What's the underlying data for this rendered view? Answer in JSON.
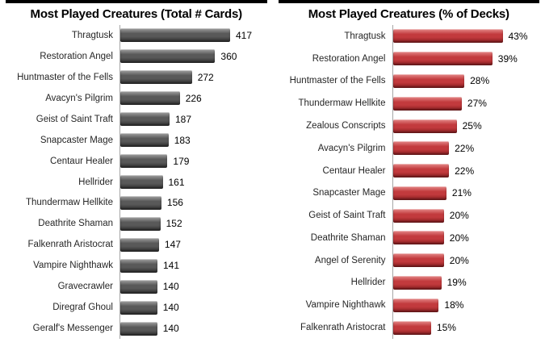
{
  "page": {
    "background": "#ffffff"
  },
  "chart_data": [
    {
      "type": "bar",
      "orientation": "horizontal",
      "title": "Most Played Creatures (Total # Cards)",
      "categories": [
        "Thragtusk",
        "Restoration Angel",
        "Huntmaster of the Fells",
        "Avacyn's Pilgrim",
        "Geist of Saint Traft",
        "Snapcaster Mage",
        "Centaur Healer",
        "Hellrider",
        "Thundermaw Hellkite",
        "Deathrite Shaman",
        "Falkenrath Aristocrat",
        "Vampire Nighthawk",
        "Gravecrawler",
        "Diregraf Ghoul",
        "Geralf's Messenger"
      ],
      "values": [
        417,
        360,
        272,
        226,
        187,
        183,
        179,
        161,
        156,
        152,
        147,
        141,
        140,
        140,
        140
      ],
      "value_suffix": "",
      "xlabel": "",
      "ylabel": "",
      "xlim": [
        0,
        450
      ],
      "grid": false,
      "legend": false,
      "data_labels": true,
      "bar_color": "#595959",
      "bar_color_light": "#a3a3a3",
      "bar_color_dark": "#2e2e2e",
      "axis_color": "#a6a6a6",
      "title_color": "#000000",
      "title_rule_color": "#000000"
    },
    {
      "type": "bar",
      "orientation": "horizontal",
      "title": "Most Played Creatures (% of Decks)",
      "categories": [
        "Thragtusk",
        "Restoration Angel",
        "Huntmaster of the Fells",
        "Thundermaw Hellkite",
        "Zealous Conscripts",
        "Avacyn's Pilgrim",
        "Centaur Healer",
        "Snapcaster Mage",
        "Geist of Saint Traft",
        "Deathrite Shaman",
        "Angel of Serenity",
        "Hellrider",
        "Vampire Nighthawk",
        "Falkenrath Aristocrat"
      ],
      "values": [
        43,
        39,
        28,
        27,
        25,
        22,
        22,
        21,
        20,
        20,
        20,
        19,
        18,
        15
      ],
      "value_suffix": "%",
      "xlabel": "",
      "ylabel": "",
      "xlim": [
        0,
        45
      ],
      "grid": false,
      "legend": false,
      "data_labels": true,
      "bar_color": "#c23a3d",
      "bar_color_light": "#e58a89",
      "bar_color_dark": "#841d1f",
      "axis_color": "#a6a6a6",
      "title_color": "#000000",
      "title_rule_color": "#000000"
    }
  ]
}
